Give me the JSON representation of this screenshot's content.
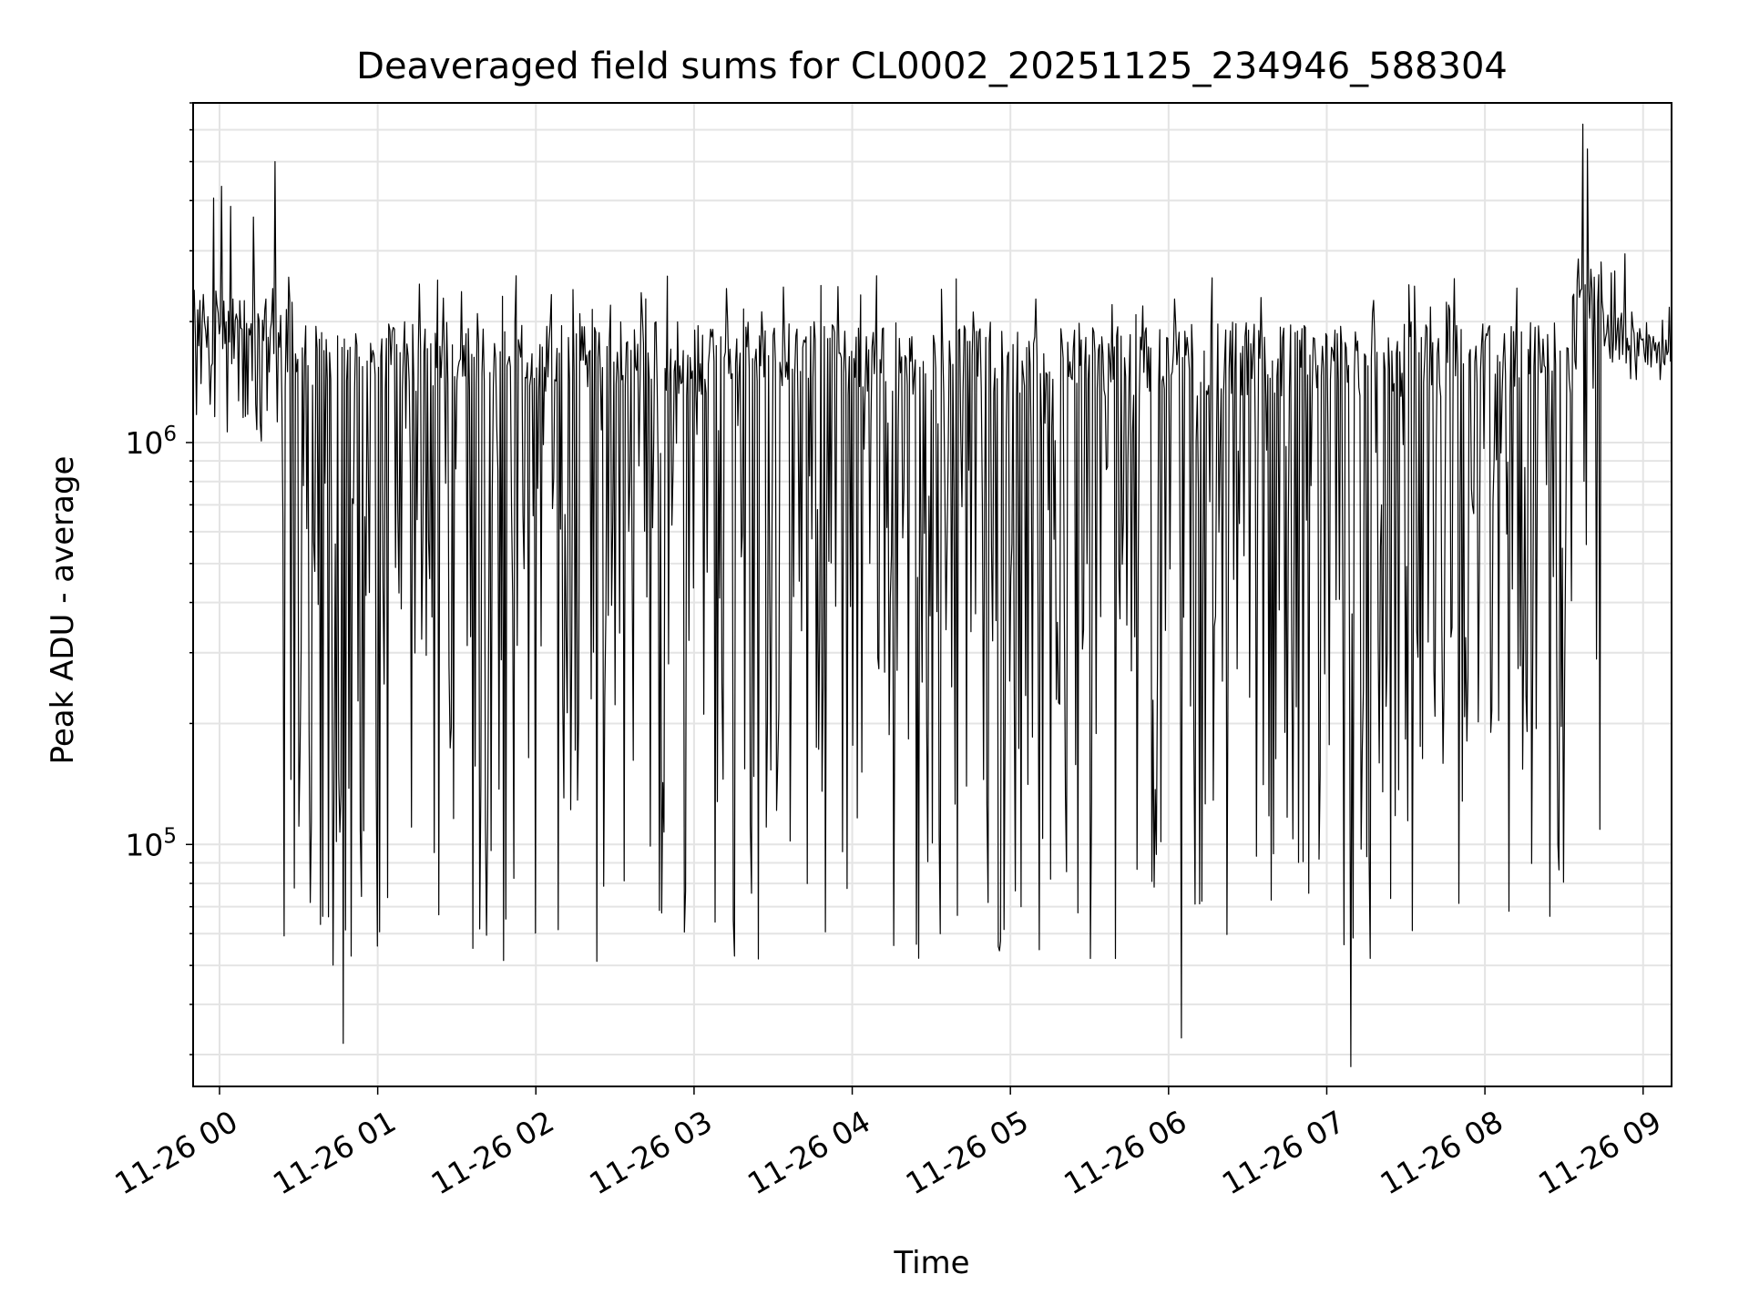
{
  "chart_data": {
    "type": "line",
    "title": "Deaveraged field sums for CL0002_20251125_234946_588304",
    "xlabel": "Time",
    "ylabel": "Peak ADU - average",
    "yscale": "log",
    "ylim": [
      25000,
      7000000
    ],
    "xlim_hours": [
      -0.167,
      9.18
    ],
    "grid": true,
    "x_ticks": [
      {
        "label": "11-26 00",
        "hour": 0
      },
      {
        "label": "11-26 01",
        "hour": 1
      },
      {
        "label": "11-26 02",
        "hour": 2
      },
      {
        "label": "11-26 03",
        "hour": 3
      },
      {
        "label": "11-26 04",
        "hour": 4
      },
      {
        "label": "11-26 05",
        "hour": 5
      },
      {
        "label": "11-26 06",
        "hour": 6
      },
      {
        "label": "11-26 07",
        "hour": 7
      },
      {
        "label": "11-26 08",
        "hour": 8
      },
      {
        "label": "11-26 09",
        "hour": 9
      }
    ],
    "y_ticks": [
      {
        "base": "10",
        "exp": "5",
        "value": 100000
      },
      {
        "base": "10",
        "exp": "6",
        "value": 1000000
      }
    ],
    "series": [
      {
        "name": "Peak ADU - average",
        "color": "#000000",
        "segments": [
          {
            "from_hour": -0.167,
            "to_hour": 0.4,
            "upper": 4500000,
            "high": 2500000,
            "low": 1000000
          },
          {
            "from_hour": 0.4,
            "to_hour": 8.55,
            "upper": 2600000,
            "high": 2000000,
            "low": 50000
          },
          {
            "from_hour": 8.55,
            "to_hour": 8.75,
            "upper": 6000000,
            "high": 3000000,
            "low": 100000
          },
          {
            "from_hour": 8.75,
            "to_hour": 9.18,
            "upper": 3000000,
            "high": 2200000,
            "low": 1500000
          }
        ],
        "extremes": [
          {
            "hour": 0.78,
            "value": 32000
          },
          {
            "hour": 6.08,
            "value": 33000
          },
          {
            "hour": 7.15,
            "value": 28000
          },
          {
            "hour": 8.62,
            "value": 6200000
          },
          {
            "hour": 0.35,
            "value": 5000000
          }
        ]
      }
    ]
  }
}
